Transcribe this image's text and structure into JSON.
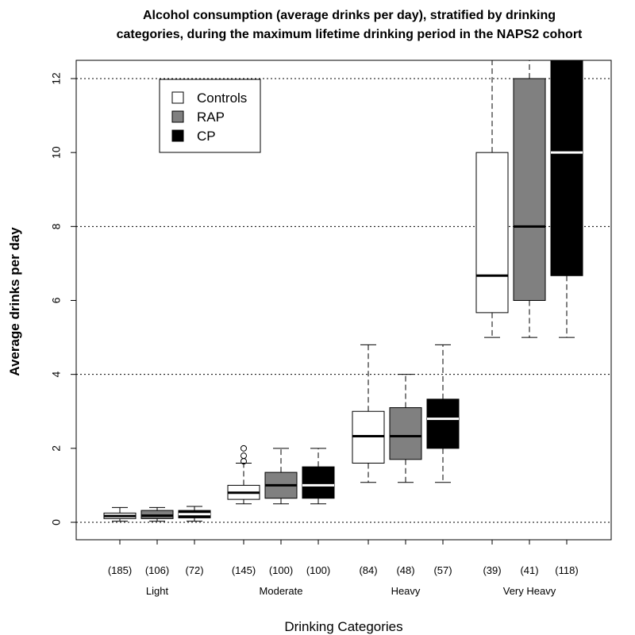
{
  "chart_data": {
    "type": "boxplot",
    "title_line1": "Alcohol consumption (average drinks per day), stratified by drinking",
    "title_line2": "categories, during the maximum lifetime drinking period in the NAPS2 cohort",
    "xlabel": "Drinking Categories",
    "ylabel": "Average drinks per day",
    "ylim": [
      -0.5,
      12.5
    ],
    "yticks": [
      "0",
      "2",
      "4",
      "6",
      "8",
      "10",
      "12"
    ],
    "ytick_values": [
      0,
      2,
      4,
      6,
      8,
      10,
      12
    ],
    "hgrid_dotted": [
      0,
      4,
      8,
      12
    ],
    "legend": {
      "position": "top-left",
      "entries": [
        {
          "label": "Controls",
          "color": "#ffffff"
        },
        {
          "label": "RAP",
          "color": "#808080"
        },
        {
          "label": "CP",
          "color": "#000000"
        }
      ]
    },
    "categories": [
      "Light",
      "Moderate",
      "Heavy",
      "Very Heavy"
    ],
    "boxes": [
      {
        "group": "Controls",
        "category": "Light",
        "n": "(185)",
        "min": 0.03,
        "q1": 0.1,
        "median": 0.17,
        "q3": 0.25,
        "max": 0.4,
        "fill": "#ffffff",
        "median_color": "#000000",
        "outliers": []
      },
      {
        "group": "RAP",
        "category": "Light",
        "n": "(106)",
        "min": 0.03,
        "q1": 0.1,
        "median": 0.18,
        "q3": 0.32,
        "max": 0.4,
        "fill": "#808080",
        "median_color": "#000000",
        "outliers": []
      },
      {
        "group": "CP",
        "category": "Light",
        "n": "(72)",
        "min": 0.03,
        "q1": 0.12,
        "median": 0.22,
        "q3": 0.32,
        "max": 0.43,
        "fill": "#000000",
        "median_color": "#ffffff",
        "outliers": []
      },
      {
        "group": "Controls",
        "category": "Moderate",
        "n": "(145)",
        "min": 0.5,
        "q1": 0.62,
        "median": 0.8,
        "q3": 1.0,
        "max": 1.6,
        "fill": "#ffffff",
        "median_color": "#000000",
        "outliers": [
          1.65,
          1.8,
          2.0
        ]
      },
      {
        "group": "RAP",
        "category": "Moderate",
        "n": "(100)",
        "min": 0.5,
        "q1": 0.65,
        "median": 1.0,
        "q3": 1.35,
        "max": 2.0,
        "fill": "#808080",
        "median_color": "#000000",
        "outliers": []
      },
      {
        "group": "CP",
        "category": "Moderate",
        "n": "(100)",
        "min": 0.5,
        "q1": 0.65,
        "median": 1.0,
        "q3": 1.5,
        "max": 2.0,
        "fill": "#000000",
        "median_color": "#ffffff",
        "outliers": []
      },
      {
        "group": "Controls",
        "category": "Heavy",
        "n": "(84)",
        "min": 1.08,
        "q1": 1.6,
        "median": 2.33,
        "q3": 3.0,
        "max": 4.8,
        "fill": "#ffffff",
        "median_color": "#000000",
        "outliers": []
      },
      {
        "group": "RAP",
        "category": "Heavy",
        "n": "(48)",
        "min": 1.08,
        "q1": 1.7,
        "median": 2.33,
        "q3": 3.1,
        "max": 4.0,
        "fill": "#808080",
        "median_color": "#000000",
        "outliers": []
      },
      {
        "group": "CP",
        "category": "Heavy",
        "n": "(57)",
        "min": 1.08,
        "q1": 2.0,
        "median": 2.8,
        "q3": 3.33,
        "max": 4.8,
        "fill": "#000000",
        "median_color": "#ffffff",
        "outliers": []
      },
      {
        "group": "Controls",
        "category": "Very Heavy",
        "n": "(39)",
        "min": 5.0,
        "q1": 5.67,
        "median": 6.67,
        "q3": 10.0,
        "max": 13.0,
        "fill": "#ffffff",
        "median_color": "#000000",
        "outliers": []
      },
      {
        "group": "RAP",
        "category": "Very Heavy",
        "n": "(41)",
        "min": 5.0,
        "q1": 6.0,
        "median": 8.0,
        "q3": 12.0,
        "max": 13.0,
        "fill": "#808080",
        "median_color": "#000000",
        "outliers": []
      },
      {
        "group": "CP",
        "category": "Very Heavy",
        "n": "(118)",
        "min": 5.0,
        "q1": 6.67,
        "median": 10.0,
        "q3": 13.0,
        "max": 13.0,
        "fill": "#000000",
        "median_color": "#ffffff",
        "outliers": []
      }
    ]
  }
}
